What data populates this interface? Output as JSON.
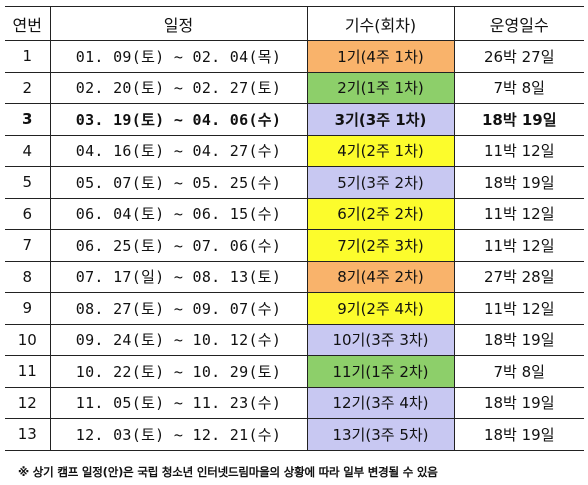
{
  "headers": [
    "연번",
    "일정",
    "기수(회차)",
    "운영일수"
  ],
  "colors": {
    "orange": "#f9b36b",
    "green": "#8dcf6a",
    "lavender": "#c8c8f2",
    "yellow": "#fcfc2c"
  },
  "rows": [
    {
      "no": "1",
      "date": "01. 09(토) ~ 02. 04(목)",
      "gen": "1기(4주 1차)",
      "days": "26박 27일",
      "color": "orange",
      "bold": false
    },
    {
      "no": "2",
      "date": "02. 20(토) ~ 02. 27(토)",
      "gen": "2기(1주 1차)",
      "days": "7박 8일",
      "color": "green",
      "bold": false
    },
    {
      "no": "3",
      "date": "03. 19(토) ~ 04. 06(수)",
      "gen": "3기(3주 1차)",
      "days": "18박 19일",
      "color": "lavender",
      "bold": true
    },
    {
      "no": "4",
      "date": "04. 16(토) ~ 04. 27(수)",
      "gen": "4기(2주 1차)",
      "days": "11박 12일",
      "color": "yellow",
      "bold": false
    },
    {
      "no": "5",
      "date": "05. 07(토) ~ 05. 25(수)",
      "gen": "5기(3주 2차)",
      "days": "18박 19일",
      "color": "lavender",
      "bold": false
    },
    {
      "no": "6",
      "date": "06. 04(토) ~ 06. 15(수)",
      "gen": "6기(2주 2차)",
      "days": "11박 12일",
      "color": "yellow",
      "bold": false
    },
    {
      "no": "7",
      "date": "06. 25(토) ~ 07. 06(수)",
      "gen": "7기(2주 3차)",
      "days": "11박 12일",
      "color": "yellow",
      "bold": false
    },
    {
      "no": "8",
      "date": "07. 17(일) ~ 08. 13(토)",
      "gen": "8기(4주 2차)",
      "days": "27박 28일",
      "color": "orange",
      "bold": false
    },
    {
      "no": "9",
      "date": "08. 27(토) ~ 09. 07(수)",
      "gen": "9기(2주 4차)",
      "days": "11박 12일",
      "color": "yellow",
      "bold": false
    },
    {
      "no": "10",
      "date": "09. 24(토) ~ 10. 12(수)",
      "gen": "10기(3주 3차)",
      "days": "18박 19일",
      "color": "lavender",
      "bold": false
    },
    {
      "no": "11",
      "date": "10. 22(토) ~ 10. 29(토)",
      "gen": "11기(1주 2차)",
      "days": "7박 8일",
      "color": "green",
      "bold": false
    },
    {
      "no": "12",
      "date": "11. 05(토) ~ 11. 23(수)",
      "gen": "12기(3주 4차)",
      "days": "18박 19일",
      "color": "lavender",
      "bold": false
    },
    {
      "no": "13",
      "date": "12. 03(토) ~ 12. 21(수)",
      "gen": "13기(3주 5차)",
      "days": "18박 19일",
      "color": "lavender",
      "bold": false
    }
  ],
  "note": "※ 상기 캠프 일정(안)은 국립 청소년 인터넷드림마을의 상황에 따라 일부 변경될 수 있음"
}
